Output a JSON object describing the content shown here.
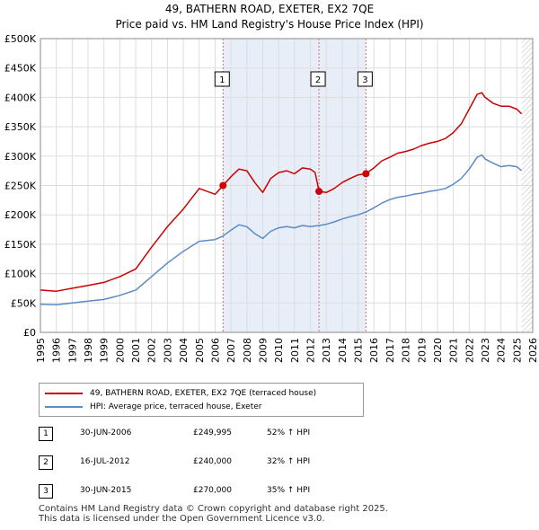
{
  "header": {
    "title_line1": "49, BATHERN ROAD, EXETER, EX2 7QE",
    "title_line2": "Price paid vs. HM Land Registry's House Price Index (HPI)"
  },
  "chart_data": {
    "type": "line",
    "title": "49, BATHERN ROAD, EXETER, EX2 7QE",
    "subtitle": "Price paid vs. HM Land Registry's House Price Index (HPI)",
    "xlim": [
      1995,
      2026
    ],
    "ylim": [
      0,
      500000
    ],
    "x_ticks": [
      1995,
      1996,
      1997,
      1998,
      1999,
      2000,
      2001,
      2002,
      2003,
      2004,
      2005,
      2006,
      2007,
      2008,
      2009,
      2010,
      2011,
      2012,
      2013,
      2014,
      2015,
      2016,
      2017,
      2018,
      2019,
      2020,
      2021,
      2022,
      2023,
      2024,
      2025,
      2026
    ],
    "y_ticks": [
      {
        "value": 0,
        "label": "£0"
      },
      {
        "value": 50000,
        "label": "£50K"
      },
      {
        "value": 100000,
        "label": "£100K"
      },
      {
        "value": 150000,
        "label": "£150K"
      },
      {
        "value": 200000,
        "label": "£200K"
      },
      {
        "value": 250000,
        "label": "£250K"
      },
      {
        "value": 300000,
        "label": "£300K"
      },
      {
        "value": 350000,
        "label": "£350K"
      },
      {
        "value": 400000,
        "label": "£400K"
      },
      {
        "value": 450000,
        "label": "£450K"
      },
      {
        "value": 500000,
        "label": "£500K"
      }
    ],
    "grid": true,
    "colors": {
      "price": "#cc0000",
      "hpi": "#5b8ac6",
      "shade": "#e8eef8",
      "vline": "#e06666",
      "grid": "#dddddd"
    },
    "series": [
      {
        "name": "49, BATHERN ROAD, EXETER, EX2 7QE (terraced house)",
        "color": "#cc0000",
        "x": [
          1995,
          1996,
          1997,
          1998,
          1999,
          2000,
          2001,
          2002,
          2003,
          2004,
          2005,
          2006,
          2006.5,
          2007,
          2007.5,
          2008,
          2008.5,
          2009,
          2009.5,
          2010,
          2010.5,
          2011,
          2011.5,
          2012,
          2012.3,
          2012.55,
          2013,
          2013.5,
          2014,
          2014.5,
          2015,
          2015.5,
          2016,
          2016.5,
          2017,
          2017.5,
          2018,
          2018.5,
          2019,
          2019.5,
          2020,
          2020.5,
          2021,
          2021.5,
          2022,
          2022.5,
          2022.8,
          2023,
          2023.5,
          2024,
          2024.5,
          2025,
          2025.3
        ],
        "values": [
          72000,
          70000,
          75000,
          80000,
          85000,
          95000,
          108000,
          145000,
          180000,
          210000,
          245000,
          235000,
          249995,
          265000,
          278000,
          275000,
          255000,
          238000,
          262000,
          272000,
          275000,
          270000,
          280000,
          278000,
          272000,
          240000,
          238000,
          245000,
          255000,
          262000,
          268000,
          270000,
          280000,
          292000,
          298000,
          305000,
          308000,
          312000,
          318000,
          322000,
          325000,
          330000,
          340000,
          355000,
          380000,
          405000,
          408000,
          400000,
          390000,
          385000,
          385000,
          380000,
          372000
        ]
      },
      {
        "name": "HPI: Average price, terraced house, Exeter",
        "color": "#5b8ac6",
        "x": [
          1995,
          1996,
          1997,
          1998,
          1999,
          2000,
          2001,
          2002,
          2003,
          2004,
          2005,
          2006,
          2006.5,
          2007,
          2007.5,
          2008,
          2008.5,
          2009,
          2009.5,
          2010,
          2010.5,
          2011,
          2011.5,
          2012,
          2012.55,
          2013,
          2013.5,
          2014,
          2014.5,
          2015,
          2015.5,
          2016,
          2016.5,
          2017,
          2017.5,
          2018,
          2018.5,
          2019,
          2019.5,
          2020,
          2020.5,
          2021,
          2021.5,
          2022,
          2022.5,
          2022.8,
          2023,
          2023.5,
          2024,
          2024.5,
          2025,
          2025.3
        ],
        "values": [
          48000,
          47000,
          50000,
          53000,
          56000,
          63000,
          72000,
          95000,
          118000,
          138000,
          155000,
          158000,
          164000,
          174000,
          183000,
          180000,
          168000,
          160000,
          172000,
          178000,
          180000,
          178000,
          182000,
          180000,
          182000,
          184000,
          188000,
          193000,
          197000,
          200000,
          205000,
          212000,
          220000,
          226000,
          230000,
          232000,
          235000,
          237000,
          240000,
          242000,
          245000,
          252000,
          262000,
          278000,
          298000,
          302000,
          295000,
          288000,
          282000,
          284000,
          282000,
          275000
        ]
      }
    ],
    "sales": [
      {
        "num": "1",
        "x": 2006.5,
        "value": 249995,
        "date": "30-JUN-2006",
        "price": "£249,995",
        "hpi": "52% ↑ HPI"
      },
      {
        "num": "2",
        "x": 2012.54,
        "value": 240000,
        "date": "16-JUL-2012",
        "price": "£240,000",
        "hpi": "32% ↑ HPI"
      },
      {
        "num": "3",
        "x": 2015.5,
        "value": 270000,
        "date": "30-JUN-2015",
        "price": "£270,000",
        "hpi": "35% ↑ HPI"
      }
    ],
    "shaded_from": 2006.5,
    "shaded_to": 2015.5,
    "hatched_from": 2025.3,
    "legend": [
      {
        "label": "49, BATHERN ROAD, EXETER, EX2 7QE (terraced house)",
        "color": "#cc0000"
      },
      {
        "label": "HPI: Average price, terraced house, Exeter",
        "color": "#5b8ac6"
      }
    ]
  },
  "footer": {
    "line1": "Contains HM Land Registry data © Crown copyright and database right 2025.",
    "line2": "This data is licensed under the Open Government Licence v3.0."
  }
}
